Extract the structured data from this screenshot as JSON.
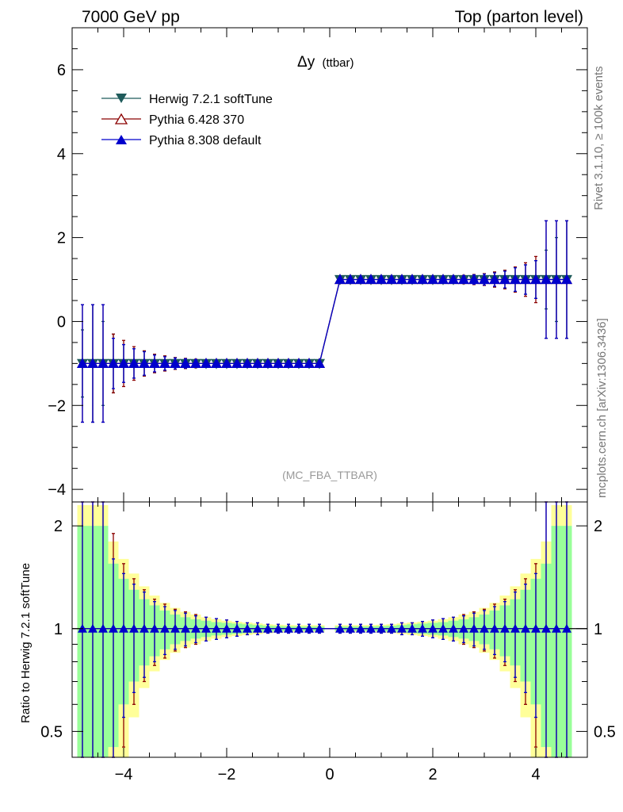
{
  "header": {
    "left": "7000 GeV pp",
    "right": "Top (parton level)"
  },
  "side_labels": {
    "rivet": "Rivet 3.1.10, ≥ 100k events",
    "mcplots": "mcplots.cern.ch [arXiv:1306.3436]"
  },
  "chart_data": {
    "type": "line",
    "title": "Δy",
    "title_suffix": "(ttbar)",
    "analysis_label": "(MC_FBA_TTBAR)",
    "xlabel": "",
    "ylabel": "",
    "xlim": [
      -5,
      5
    ],
    "ylim": [
      -4.3,
      7.0
    ],
    "x_ticks": [
      -4,
      -2,
      0,
      2,
      4
    ],
    "x_tick_labels": [
      "−4",
      "−2",
      "0",
      "2",
      "4"
    ],
    "y_ticks": [
      -4,
      -2,
      0,
      2,
      4,
      6
    ],
    "y_tick_labels": [
      "−4",
      "−2",
      "0",
      "2",
      "4",
      "6"
    ],
    "bins": {
      "centers": [
        -4.8,
        -4.6,
        -4.4,
        -4.2,
        -4.0,
        -3.8,
        -3.6,
        -3.4,
        -3.2,
        -3.0,
        -2.8,
        -2.6,
        -2.4,
        -2.2,
        -2.0,
        -1.8,
        -1.6,
        -1.4,
        -1.2,
        -1.0,
        -0.8,
        -0.6,
        -0.4,
        -0.2,
        0.2,
        0.4,
        0.6,
        0.8,
        1.0,
        1.2,
        1.4,
        1.6,
        1.8,
        2.0,
        2.2,
        2.4,
        2.6,
        2.8,
        3.0,
        3.2,
        3.4,
        3.6,
        3.8,
        4.0,
        4.2,
        4.4,
        4.6
      ],
      "width": 0.2
    },
    "series": [
      {
        "name": "Herwig 7.2.1 softTune",
        "color": "#1f5b5b",
        "marker": "triangle-down-filled",
        "values": [
          -1,
          -1,
          -1,
          -1,
          -1,
          -1,
          -1,
          -1,
          -1,
          -1,
          -1,
          -1,
          -1,
          -1,
          -1,
          -1,
          -1,
          -1,
          -1,
          -1,
          -1,
          -1,
          -1,
          -1,
          1,
          1,
          1,
          1,
          1,
          1,
          1,
          1,
          1,
          1,
          1,
          1,
          1,
          1,
          1,
          1,
          1,
          1,
          1,
          1,
          1,
          1,
          1
        ],
        "errors": [
          0.8,
          1.4,
          1.0,
          0.7,
          0.45,
          0.35,
          0.3,
          0.22,
          0.18,
          0.14,
          0.12,
          0.1,
          0.08,
          0.07,
          0.06,
          0.05,
          0.04,
          0.04,
          0.03,
          0.03,
          0.03,
          0.03,
          0.03,
          0.03,
          0.03,
          0.03,
          0.03,
          0.03,
          0.03,
          0.03,
          0.04,
          0.04,
          0.05,
          0.06,
          0.07,
          0.08,
          0.1,
          0.12,
          0.14,
          0.18,
          0.22,
          0.3,
          0.35,
          0.45,
          0.7,
          1.0,
          1.4
        ]
      },
      {
        "name": "Pythia 6.428 370",
        "color": "#8b0000",
        "marker": "triangle-up-open",
        "values": [
          -1,
          -1,
          -1,
          -1,
          -1,
          -1,
          -1,
          -1,
          -1,
          -1,
          -1,
          -1,
          -1,
          -1,
          -1,
          -1,
          -1,
          -1,
          -1,
          -1,
          -1,
          -1,
          -1,
          -1,
          1,
          1,
          1,
          1,
          1,
          1,
          1,
          1,
          1,
          1,
          1,
          1,
          1,
          1,
          1,
          1,
          1,
          1,
          1,
          1,
          1,
          1,
          1
        ],
        "errors": [
          1.4,
          1.4,
          1.4,
          0.7,
          0.55,
          0.4,
          0.3,
          0.22,
          0.18,
          0.14,
          0.12,
          0.1,
          0.08,
          0.07,
          0.06,
          0.05,
          0.04,
          0.04,
          0.03,
          0.03,
          0.03,
          0.03,
          0.03,
          0.03,
          0.03,
          0.03,
          0.03,
          0.03,
          0.03,
          0.03,
          0.04,
          0.04,
          0.05,
          0.06,
          0.07,
          0.08,
          0.1,
          0.12,
          0.14,
          0.18,
          0.22,
          0.3,
          0.4,
          0.55,
          1.4,
          1.4,
          1.4
        ]
      },
      {
        "name": "Pythia 8.308 default",
        "color": "#0000cc",
        "marker": "triangle-up-filled",
        "values": [
          -1,
          -1,
          -1,
          -1,
          -1,
          -1,
          -1,
          -1,
          -1,
          -1,
          -1,
          -1,
          -1,
          -1,
          -1,
          -1,
          -1,
          -1,
          -1,
          -1,
          -1,
          -1,
          -1,
          -1,
          1,
          1,
          1,
          1,
          1,
          1,
          1,
          1,
          1,
          1,
          1,
          1,
          1,
          1,
          1,
          1,
          1,
          1,
          1,
          1,
          1,
          1,
          1
        ],
        "errors": [
          1.4,
          1.4,
          1.4,
          0.6,
          0.45,
          0.35,
          0.28,
          0.2,
          0.16,
          0.13,
          0.11,
          0.09,
          0.08,
          0.07,
          0.06,
          0.05,
          0.04,
          0.04,
          0.03,
          0.03,
          0.03,
          0.03,
          0.03,
          0.03,
          0.03,
          0.03,
          0.03,
          0.03,
          0.03,
          0.03,
          0.04,
          0.04,
          0.05,
          0.06,
          0.07,
          0.08,
          0.09,
          0.11,
          0.13,
          0.16,
          0.2,
          0.28,
          0.35,
          0.45,
          1.4,
          1.4,
          1.4
        ]
      }
    ],
    "legend_position": "top-left",
    "ratio": {
      "ylabel": "Ratio to Herwig 7.2.1 softTune",
      "scale": "log",
      "ylim": [
        0.42,
        2.35
      ],
      "y_ticks": [
        0.5,
        1,
        2
      ],
      "y_tick_labels": [
        "0.5",
        "1",
        "2"
      ],
      "bands": {
        "green_half_widths": [
          1.0,
          1.0,
          1.0,
          0.55,
          0.4,
          0.3,
          0.22,
          0.17,
          0.13,
          0.1,
          0.08,
          0.065,
          0.055,
          0.045,
          0.04,
          0.035,
          0.03,
          0.025,
          0.02,
          0.018,
          0.016,
          0.015,
          0.015,
          0.015,
          0.015,
          0.015,
          0.015,
          0.016,
          0.018,
          0.02,
          0.025,
          0.03,
          0.035,
          0.04,
          0.045,
          0.055,
          0.065,
          0.08,
          0.1,
          0.13,
          0.17,
          0.22,
          0.3,
          0.4,
          0.55,
          1.0,
          1.0
        ],
        "yellow_half_widths": [
          1.3,
          1.3,
          1.3,
          0.8,
          0.6,
          0.45,
          0.33,
          0.25,
          0.19,
          0.15,
          0.12,
          0.1,
          0.08,
          0.066,
          0.055,
          0.048,
          0.042,
          0.036,
          0.03,
          0.027,
          0.025,
          0.024,
          0.024,
          0.024,
          0.024,
          0.024,
          0.024,
          0.025,
          0.027,
          0.03,
          0.036,
          0.042,
          0.048,
          0.055,
          0.066,
          0.08,
          0.1,
          0.12,
          0.15,
          0.19,
          0.25,
          0.33,
          0.45,
          0.6,
          0.8,
          1.3,
          1.3
        ],
        "green_color": "#99ff99",
        "yellow_color": "#ffff99"
      },
      "series": [
        {
          "name": "Pythia 6.428 370",
          "color": "#8b0000",
          "values": [
            1,
            1,
            1,
            1,
            1,
            1,
            1,
            1,
            1,
            1,
            1,
            1,
            1,
            1,
            1,
            1,
            1,
            1,
            1,
            1,
            1,
            1,
            1,
            1,
            1,
            1,
            1,
            1,
            1,
            1,
            1,
            1,
            1,
            1,
            1,
            1,
            1,
            1,
            1,
            1,
            1,
            1,
            1,
            1,
            1,
            1,
            1
          ],
          "errors": [
            1.4,
            1.4,
            1.4,
            0.9,
            0.55,
            0.4,
            0.3,
            0.22,
            0.18,
            0.14,
            0.12,
            0.1,
            0.08,
            0.07,
            0.06,
            0.05,
            0.04,
            0.04,
            0.03,
            0.03,
            0.03,
            0.03,
            0.03,
            0.03,
            0.03,
            0.03,
            0.03,
            0.03,
            0.03,
            0.03,
            0.04,
            0.04,
            0.05,
            0.06,
            0.07,
            0.08,
            0.1,
            0.12,
            0.14,
            0.18,
            0.22,
            0.3,
            0.4,
            0.55,
            1.4,
            1.4,
            1.4
          ]
        },
        {
          "name": "Pythia 8.308 default",
          "color": "#0000cc",
          "values": [
            1,
            1,
            1,
            1,
            1,
            1,
            1,
            1,
            1,
            1,
            1,
            1,
            1,
            1,
            1,
            1,
            1,
            1,
            1,
            1,
            1,
            1,
            1,
            1,
            1,
            1,
            1,
            1,
            1,
            1,
            1,
            1,
            1,
            1,
            1,
            1,
            1,
            1,
            1,
            1,
            1,
            1,
            1,
            1,
            1,
            1,
            1
          ],
          "errors": [
            1.4,
            1.4,
            1.4,
            0.6,
            0.45,
            0.35,
            0.28,
            0.2,
            0.16,
            0.13,
            0.11,
            0.09,
            0.08,
            0.07,
            0.06,
            0.05,
            0.04,
            0.04,
            0.03,
            0.03,
            0.03,
            0.03,
            0.03,
            0.03,
            0.03,
            0.03,
            0.03,
            0.03,
            0.03,
            0.03,
            0.04,
            0.04,
            0.05,
            0.06,
            0.07,
            0.08,
            0.09,
            0.11,
            0.13,
            0.16,
            0.2,
            0.28,
            0.35,
            0.45,
            1.4,
            1.4,
            1.4
          ]
        }
      ]
    }
  }
}
